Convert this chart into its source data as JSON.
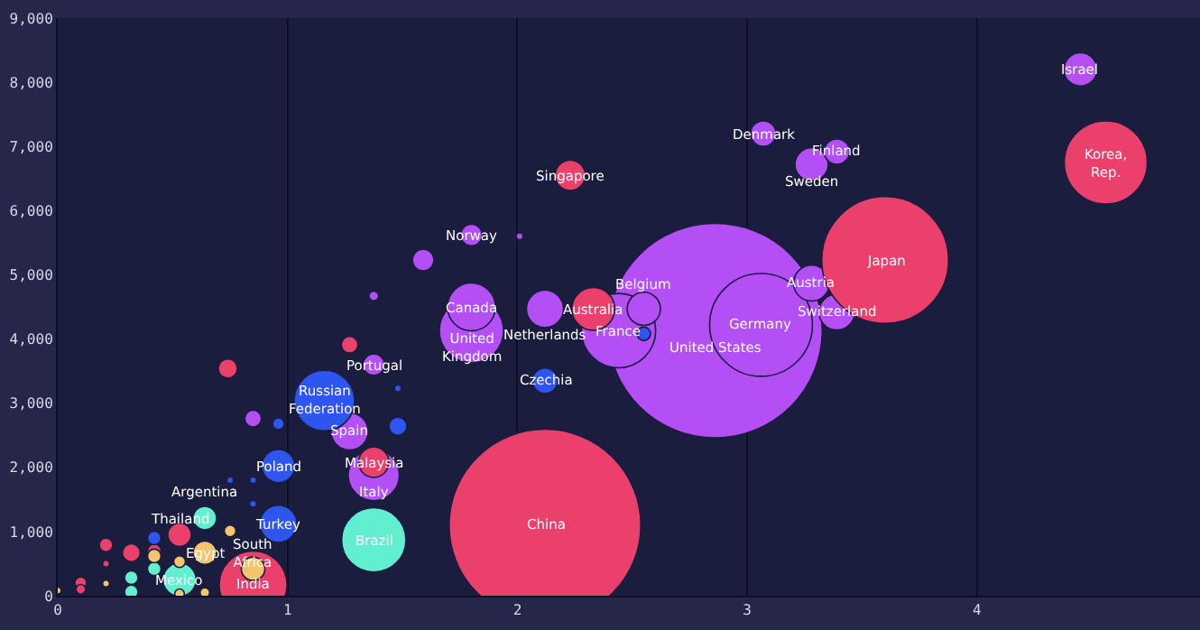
{
  "chart_data": {
    "type": "bubble",
    "xlim": [
      0,
      4.97
    ],
    "ylim": [
      0,
      9000
    ],
    "xticks": [
      0,
      1,
      2,
      3,
      4
    ],
    "yticks": [
      0,
      {
        "value": 1000,
        "label": "1,000"
      },
      {
        "value": 2000,
        "label": "2,000"
      },
      {
        "value": 3000,
        "label": "3,000"
      },
      {
        "value": 4000,
        "label": "4,000"
      },
      {
        "value": 5000,
        "label": "5,000"
      },
      {
        "value": 6000,
        "label": "6,000"
      },
      {
        "value": 7000,
        "label": "7,000"
      },
      {
        "value": 8000,
        "label": "8,000"
      },
      {
        "value": 9000,
        "label": "9,000"
      }
    ],
    "grid": "x",
    "marker": "circle",
    "series": [
      {
        "color": "#b44ef5",
        "x": [
          2.86,
          3.06,
          2.44,
          1.8,
          1.375,
          1.8,
          2.12,
          1.27,
          3.28,
          3.39,
          4.45,
          3.28,
          2.55,
          3.07,
          3.39,
          1.8,
          1.375,
          1.59,
          0.85,
          1.375,
          2.01
        ],
        "values": [
          4130,
          4220,
          4130,
          4130,
          1880,
          4500,
          4470,
          2560,
          4870,
          4420,
          8200,
          6720,
          4470,
          7200,
          6920,
          5620,
          3600,
          5230,
          2760,
          4670,
          5600
        ],
        "sizes": [
          1,
          0.23,
          0.12,
          0.09,
          0.057,
          0.05,
          0.03,
          0.03,
          0.028,
          0.028,
          0.024,
          0.024,
          0.024,
          0.014,
          0.014,
          0.01,
          0.01,
          0.01,
          0.006,
          0.002,
          0.001
        ]
      },
      {
        "color": "#eb3f6c",
        "x": [
          4.56,
          3.6,
          2.33,
          2.23,
          2.12,
          1.27,
          0.74,
          1.375,
          0.85,
          0.53,
          0.21,
          0.21,
          0.32,
          0.42,
          0.1,
          0.1
        ],
        "values": [
          6750,
          5230,
          4470,
          6550,
          1100,
          3910,
          3540,
          2080,
          170,
          950,
          790,
          500,
          670,
          700,
          200,
          100
        ],
        "sizes": [
          0.15,
          0.35,
          0.04,
          0.02,
          0.8,
          0.006,
          0.008,
          0.02,
          0.1,
          0.012,
          0.004,
          0.001,
          0.007,
          0.004,
          0.003,
          0.002
        ]
      },
      {
        "color": "#2e55f0",
        "x": [
          2.55,
          2.12,
          1.16,
          1.48,
          1.48,
          0.96,
          0.96,
          0.96,
          0.85,
          0.85,
          0.75,
          0.42
        ],
        "values": [
          4080,
          3350,
          3040,
          2640,
          3230,
          2680,
          2020,
          1120,
          1430,
          1800,
          1800,
          900
        ],
        "sizes": [
          0.004,
          0.014,
          0.08,
          0.007,
          0.001,
          0.003,
          0.024,
          0.03,
          0.001,
          0.001,
          0.001,
          0.004
        ]
      },
      {
        "color": "#62efd0",
        "x": [
          1.375,
          0.64,
          0.53,
          0.42,
          0.32,
          0.32
        ],
        "values": [
          870,
          1210,
          250,
          420,
          280,
          60
        ],
        "sizes": [
          0.09,
          0.012,
          0.024,
          0.004,
          0.004,
          0.004
        ]
      },
      {
        "color": "#f4c56c",
        "x": [
          0.85,
          0.75,
          0.64,
          0.53,
          0.42,
          0.21,
          0.53,
          0.64,
          0
        ],
        "values": [
          420,
          1010,
          670,
          530,
          620,
          190,
          30,
          50,
          80
        ],
        "sizes": [
          0.012,
          0.003,
          0.012,
          0.003,
          0.004,
          0.001,
          0.002,
          0.002,
          0.001
        ]
      }
    ],
    "annotations": [
      {
        "text": "Israel",
        "x": 4.45,
        "y": 8200
      },
      {
        "text": "Korea,\nRep.",
        "x": 4.56,
        "y": 6750
      },
      {
        "text": "Japan",
        "x": 3.6,
        "y": 5230
      },
      {
        "text": "Denmark",
        "x": 3.07,
        "y": 7200
      },
      {
        "text": "Finland",
        "x": 3.39,
        "y": 6920
      },
      {
        "text": "Sweden",
        "x": 3.28,
        "y": 6720
      },
      {
        "text": "Austria",
        "x": 3.28,
        "y": 4870
      },
      {
        "text": "Switzerland",
        "x": 3.39,
        "y": 4420
      },
      {
        "text": "Germany",
        "x": 3.06,
        "y": 4220
      },
      {
        "text": "United States",
        "x": 2.86,
        "y": 4130
      },
      {
        "text": "Australia",
        "x": 2.33,
        "y": 4470
      },
      {
        "text": "Belgium",
        "x": 2.55,
        "y": 4470
      },
      {
        "text": "France",
        "x": 2.44,
        "y": 4130
      },
      {
        "text": "Netherlands",
        "x": 2.12,
        "y": 4470
      },
      {
        "text": "Singapore",
        "x": 2.23,
        "y": 6550
      },
      {
        "text": "Norway",
        "x": 1.8,
        "y": 5620
      },
      {
        "text": "Canada",
        "x": 1.8,
        "y": 4500
      },
      {
        "text": "United\nKingdom",
        "x": 1.8,
        "y": 4130
      },
      {
        "text": "Czechia",
        "x": 2.12,
        "y": 3350
      },
      {
        "text": "China",
        "x": 2.12,
        "y": 1100
      },
      {
        "text": "Portugal",
        "x": 1.375,
        "y": 3600
      },
      {
        "text": "Russian\nFederation",
        "x": 1.16,
        "y": 3040
      },
      {
        "text": "Spain",
        "x": 1.27,
        "y": 2560
      },
      {
        "text": "Poland",
        "x": 0.96,
        "y": 2020
      },
      {
        "text": "Malaysia",
        "x": 1.375,
        "y": 2080
      },
      {
        "text": "Italy",
        "x": 1.375,
        "y": 1880
      },
      {
        "text": "Turkey",
        "x": 0.96,
        "y": 1120
      },
      {
        "text": "Brazil",
        "x": 1.375,
        "y": 870
      },
      {
        "text": "Mexico",
        "x": 0.53,
        "y": 250
      },
      {
        "text": "India",
        "x": 0.85,
        "y": 170
      },
      {
        "text": "South\nAfrica",
        "x": 0.85,
        "y": 420
      },
      {
        "text": "Egypt",
        "x": 0.64,
        "y": 670
      },
      {
        "text": "Thailand",
        "x": 0.53,
        "y": 950
      },
      {
        "text": "Argentina",
        "x": 0.64,
        "y": 1210
      }
    ]
  }
}
